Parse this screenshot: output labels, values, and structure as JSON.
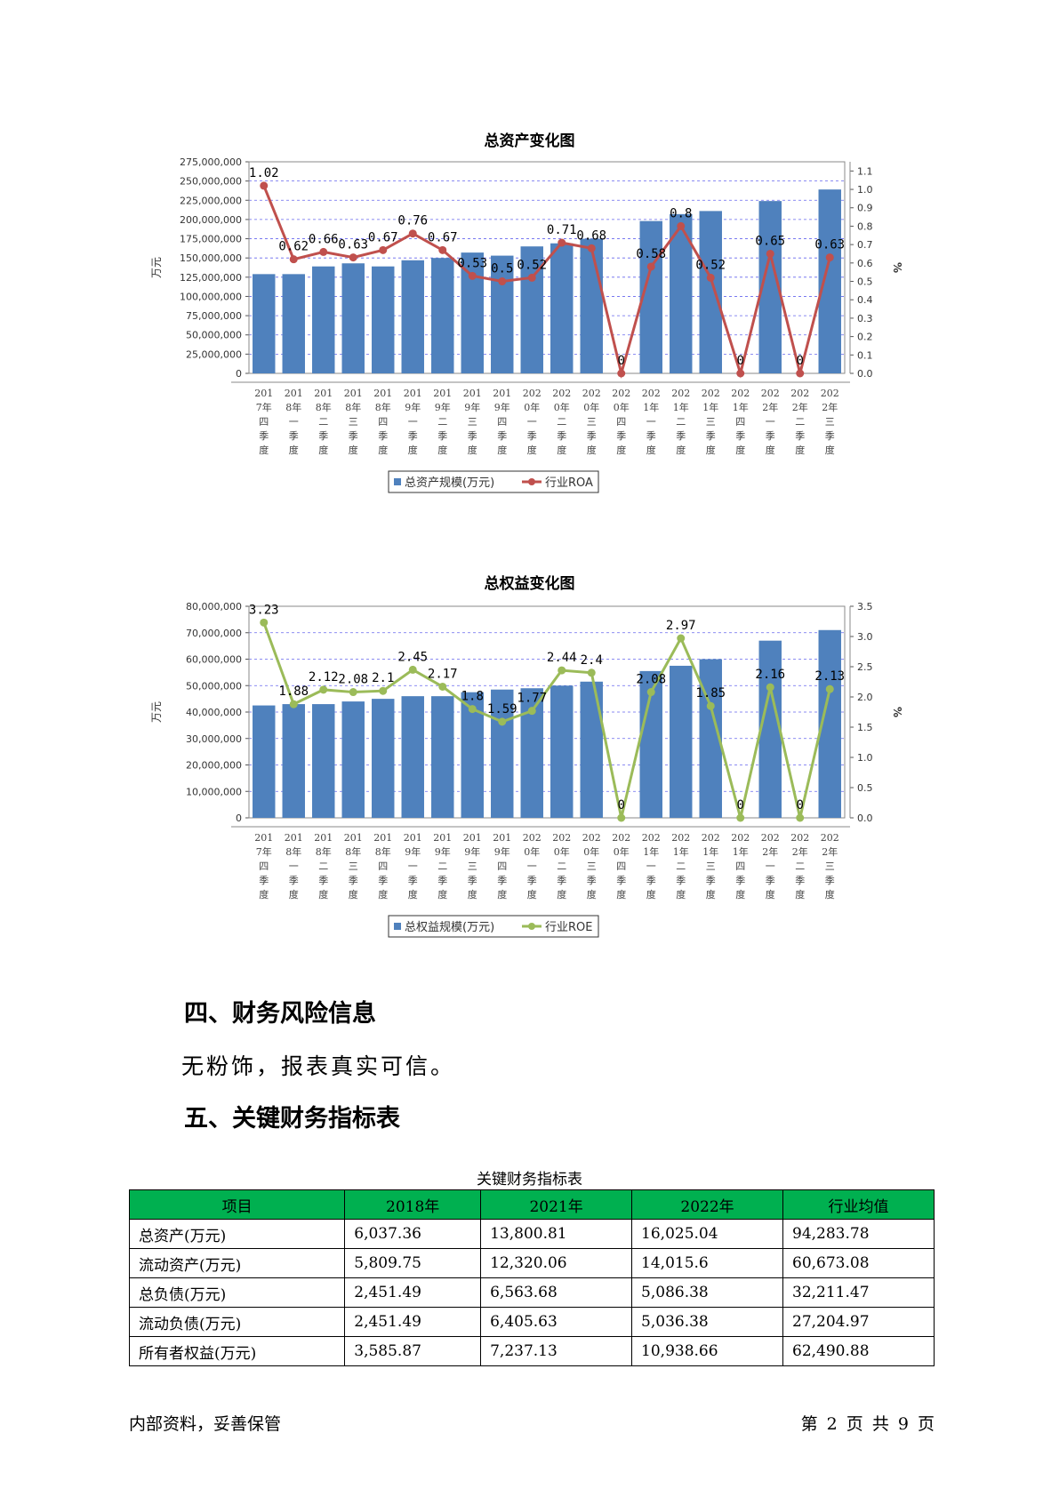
{
  "chart_data": [
    {
      "type": "bar",
      "title": "总资产变化图",
      "ylabel": "万元",
      "y2label": "%",
      "ylim": [
        0,
        275000000
      ],
      "y2lim": [
        0,
        1.15
      ],
      "yticks": [
        0,
        25000000,
        50000000,
        75000000,
        100000000,
        125000000,
        150000000,
        175000000,
        200000000,
        225000000,
        250000000,
        275000000
      ],
      "y2ticks": [
        0,
        0.1,
        0.2,
        0.3,
        0.4,
        0.5,
        0.6,
        0.7,
        0.8,
        0.9,
        1.0,
        1.1
      ],
      "categories": [
        "2017年四季度",
        "2018年一季度",
        "2018年二季度",
        "2018年三季度",
        "2018年四季度",
        "2019年一季度",
        "2019年二季度",
        "2019年三季度",
        "2019年四季度",
        "2020年一季度",
        "2020年二季度",
        "2020年三季度",
        "2020年四季度",
        "2021年一季度",
        "2021年二季度",
        "2021年三季度",
        "2021年四季度",
        "2022年一季度",
        "2022年二季度",
        "2022年三季度"
      ],
      "series": [
        {
          "name": "总资产规模(万元)",
          "kind": "bar",
          "color": "#4f81bd",
          "values": [
            129000000,
            129000000,
            139000000,
            143000000,
            139000000,
            147000000,
            150000000,
            157000000,
            153000000,
            165000000,
            169000000,
            175000000,
            0,
            198000000,
            207000000,
            211000000,
            0,
            224000000,
            0,
            239000000
          ]
        },
        {
          "name": "行业ROA",
          "kind": "line",
          "color": "#c0504d",
          "values": [
            1.02,
            0.62,
            0.66,
            0.63,
            0.67,
            0.76,
            0.67,
            0.53,
            0.5,
            0.52,
            0.71,
            0.68,
            0,
            0.58,
            0.8,
            0.52,
            0,
            0.65,
            0,
            0.63
          ],
          "labels": [
            "1.02",
            "0.62",
            "0.66",
            "0.63",
            "0.67",
            "0.76",
            "0.67",
            "0.53",
            "0.5",
            "0.52",
            "0.71",
            "0.68",
            "0",
            "0.58",
            "0.8",
            "0.52",
            "0",
            "0.65",
            "0",
            "0.63"
          ]
        }
      ],
      "legend": "bottom",
      "grid": true
    },
    {
      "type": "bar",
      "title": "总权益变化图",
      "ylabel": "万元",
      "y2label": "%",
      "ylim": [
        0,
        80000000
      ],
      "y2lim": [
        0,
        3.5
      ],
      "yticks": [
        0,
        10000000,
        20000000,
        30000000,
        40000000,
        50000000,
        60000000,
        70000000,
        80000000
      ],
      "y2ticks": [
        0,
        0.5,
        1.0,
        1.5,
        2.0,
        2.5,
        3.0,
        3.5
      ],
      "categories": [
        "2017年四季度",
        "2018年一季度",
        "2018年二季度",
        "2018年三季度",
        "2018年四季度",
        "2019年一季度",
        "2019年二季度",
        "2019年三季度",
        "2019年四季度",
        "2020年一季度",
        "2020年二季度",
        "2020年三季度",
        "2020年四季度",
        "2021年一季度",
        "2021年二季度",
        "2021年三季度",
        "2021年四季度",
        "2022年一季度",
        "2022年二季度",
        "2022年三季度"
      ],
      "series": [
        {
          "name": "总权益规模(万元)",
          "kind": "bar",
          "color": "#4f81bd",
          "values": [
            42500000,
            43000000,
            43000000,
            44000000,
            45000000,
            46000000,
            46000000,
            47500000,
            48500000,
            49000000,
            50000000,
            51500000,
            0,
            55500000,
            57500000,
            60000000,
            0,
            67000000,
            0,
            71000000
          ]
        },
        {
          "name": "行业ROE",
          "kind": "line",
          "color": "#9bbb59",
          "values": [
            3.23,
            1.88,
            2.12,
            2.08,
            2.1,
            2.45,
            2.17,
            1.8,
            1.59,
            1.77,
            2.44,
            2.4,
            0,
            2.08,
            2.97,
            1.85,
            0,
            2.16,
            0,
            2.13
          ],
          "labels": [
            "3.23",
            "1.88",
            "2.12",
            "2.08",
            "2.1",
            "2.45",
            "2.17",
            "1.8",
            "1.59",
            "1.77",
            "2.44",
            "2.4",
            "0",
            "2.08",
            "2.97",
            "1.85",
            "0",
            "2.16",
            "0",
            "2.13"
          ]
        }
      ],
      "legend": "bottom",
      "grid": true
    }
  ],
  "section4": {
    "heading": "四、财务风险信息",
    "text": "无粉饰，报表真实可信。"
  },
  "section5": {
    "heading": "五、关键财务指标表"
  },
  "table": {
    "caption": "关键财务指标表",
    "headers": [
      "项目",
      "2018年",
      "2021年",
      "2022年",
      "行业均值"
    ],
    "header_color": "#00b050",
    "rows": [
      [
        "总资产(万元)",
        "6,037.36",
        "13,800.81",
        "16,025.04",
        "94,283.78"
      ],
      [
        "流动资产(万元)",
        "5,809.75",
        "12,320.06",
        "14,015.6",
        "60,673.08"
      ],
      [
        "总负债(万元)",
        "2,451.49",
        "6,563.68",
        "5,086.38",
        "32,211.47"
      ],
      [
        "流动负债(万元)",
        "2,451.49",
        "6,405.63",
        "5,036.38",
        "27,204.97"
      ],
      [
        "所有者权益(万元)",
        "3,585.87",
        "7,237.13",
        "10,938.66",
        "62,490.88"
      ]
    ]
  },
  "footer": {
    "left": "内部资料，妥善保管",
    "right": "第 2 页  共 9 页"
  }
}
